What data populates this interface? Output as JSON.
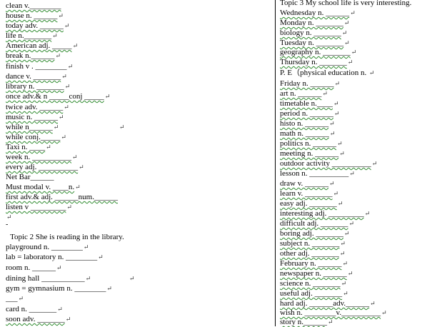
{
  "left_column": {
    "lines": [
      {
        "text": "clean     v.________",
        "mark": ""
      },
      {
        "text": "house     n.  ______",
        "mark": "↵"
      },
      {
        "text": "today adv. ______",
        "mark": "↵"
      },
      {
        "text": "life    n._______",
        "mark": "↵"
      },
      {
        "text": "American    adj.   _____",
        "mark": "↵"
      },
      {
        "text": "break   n.______",
        "mark": "↵"
      },
      {
        "text": "finish    v .  ________",
        "mark": "↵"
      },
      {
        "text": "dance    v.   _______",
        "mark": "↵"
      },
      {
        "text": "library  n.  _______",
        "mark": "↵"
      },
      {
        "text": "once adv.& n  _____conj  _____",
        "mark": "↵"
      },
      {
        "text": "twice    adv.  ______",
        "mark": "↵"
      },
      {
        "text": "music      n.   ______",
        "mark": "↵"
      },
      {
        "text": "while    n______",
        "mark": "↵"
      },
      {
        "text": "while conj._____",
        "mark": "↵"
      },
      {
        "text": "Taxi    n.  ____",
        "mark": "↵"
      },
      {
        "text": " week   n.  __________",
        "mark": "↵"
      },
      {
        "text": "every adj.  __________",
        "mark": "↵"
      },
      {
        "text": "Net Bar______",
        "mark": ""
      },
      {
        "text": "Must      modal v.  ____n.",
        "mark": "↵"
      },
      {
        "text": "first    adv.& adj.   ______num.______",
        "mark": ""
      },
      {
        "text": "listen     v  _________",
        "mark": "↵"
      },
      {
        "text": "",
        "mark": "↵"
      },
      {
        "text": "",
        "mark": ""
      },
      {
        "text": "",
        "mark": ""
      },
      {
        "text": "Topic 2 She is reading  in the library.",
        "mark": ""
      },
      {
        "text": "   playground              n.  ________",
        "mark": "↵"
      },
      {
        "text": "   lab = laboratory  n.  ________",
        "mark": "↵"
      },
      {
        "text": "   room    n.  ______",
        "mark": "↵"
      },
      {
        "text": "   dining hall  ___________",
        "mark": "↵"
      },
      {
        "text": "   gym = gymnasium  n.  ________",
        "mark": "↵"
      },
      {
        "text": "___",
        "mark": "↵"
      },
      {
        "text": "     card     n.  _______",
        "mark": "↵"
      },
      {
        "text": "soon     adv.  _______",
        "mark": "↵"
      }
    ]
  },
  "left_marks_extra": {
    "while_far": "↵",
    "dining_far": "↵"
  },
  "right_column": {
    "heading": "Topic 3 My school life is very interesting.",
    "lines": [
      {
        "text": "Wednesday            n.   ______",
        "mark": "↵"
      },
      {
        "text": "Monday                 n.  _______",
        "mark": "↵"
      },
      {
        "text": "biology                  n.   _______",
        "mark": "↵"
      },
      {
        "text": "Tuesday                 n.  _______",
        "mark": "↵"
      },
      {
        "text": "geography               n.  _______",
        "mark": "↵"
      },
      {
        "text": "Thursday                n.  _______",
        "mark": "↵"
      },
      {
        "text": "P. E（physical education    n.  ",
        "mark": "↵"
      },
      {
        "text": "Friday n.   ______",
        "mark": "↵"
      },
      {
        "text": "art     n.   ______",
        "mark": "↵"
      },
      {
        "text": "timetable     n.____",
        "mark": "↵"
      },
      {
        "text": "period     n.  ______",
        "mark": "↵"
      },
      {
        "text": "histo     n.    ______",
        "mark": "↵"
      },
      {
        "text": "math     n.    ______",
        "mark": "↵"
      },
      {
        "text": "politics n.  ______",
        "mark": "↵"
      },
      {
        "text": "meeting     n.  ______",
        "mark": "↵"
      },
      {
        "text": "outdoor activity  __________",
        "mark": "↵"
      },
      {
        "text": "lesson n.  __________",
        "mark": "↵"
      },
      {
        "text": "draw     v.  ______",
        "mark": "↵"
      },
      {
        "text": "learn     v.  _______",
        "mark": "↵"
      },
      {
        "text": "easy     adj.   _______",
        "mark": "↵"
      },
      {
        "text": "interesting  adj.  _________",
        "mark": "↵"
      },
      {
        "text": "difficult    adj.  _______",
        "mark": "↵"
      },
      {
        "text": "boring     adj.   _______",
        "mark": "↵"
      },
      {
        "text": "subject     n.   _______",
        "mark": "↵"
      },
      {
        "text": "other     adj.   _______",
        "mark": "↵"
      },
      {
        "text": "February n.   ______",
        "mark": "↵"
      },
      {
        "text": "newspaper     n.  ______",
        "mark": "↵"
      },
      {
        "text": "science     n.   _______",
        "mark": "↵"
      },
      {
        "text": "useful     adj.  _______",
        "mark": "↵"
      },
      {
        "text": "hard     adj.   ______adv.______",
        "mark": "↵"
      },
      {
        "text": "wish     n.  ________v.__________",
        "mark": "↵"
      },
      {
        "text": "story     n.______",
        "mark": "↵"
      }
    ]
  }
}
